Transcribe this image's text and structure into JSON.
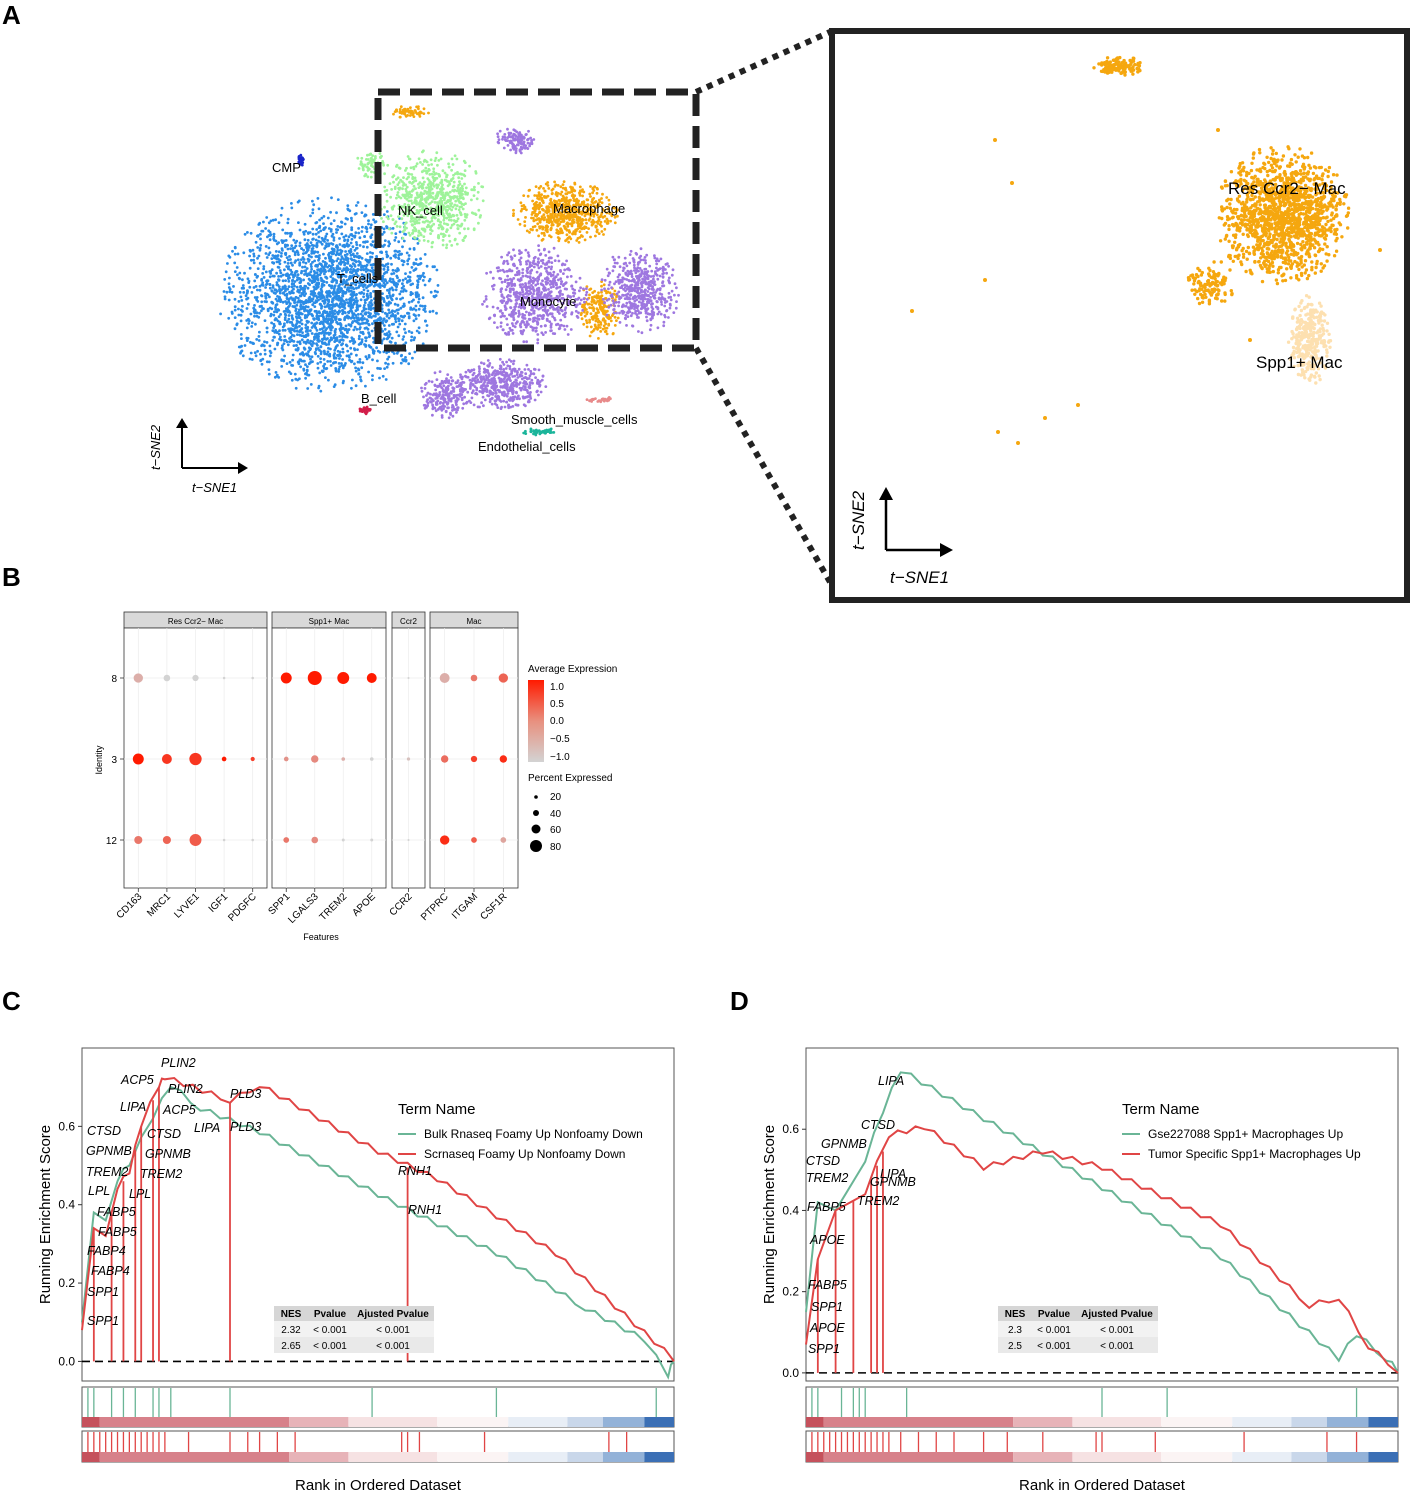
{
  "panel_letters": {
    "a": "A",
    "b": "B",
    "c": "C",
    "d": "D"
  },
  "chart_data": [
    {
      "panel": "A",
      "type": "scatter",
      "title": "",
      "xlabel": "t−SNE1",
      "ylabel": "t−SNE2",
      "grid": false,
      "clusters": [
        {
          "name": "T_cells",
          "color": "#2b8ce6"
        },
        {
          "name": "NK_cell",
          "color": "#9ef39a"
        },
        {
          "name": "Macrophage",
          "color": "#f5a70f"
        },
        {
          "name": "Monocyte",
          "color": "#9e77e0"
        },
        {
          "name": "CMP",
          "color": "#1a24c9"
        },
        {
          "name": "B_cell",
          "color": "#d21e4a"
        },
        {
          "name": "Smooth_muscle_cells",
          "color": "#e88a8a"
        },
        {
          "name": "Endothelial_cells",
          "color": "#1bb59b"
        }
      ],
      "zoom": {
        "xlabel": "t−SNE1",
        "ylabel": "t−SNE2",
        "clusters": [
          {
            "name": "Res Ccr2− Mac",
            "color": "#f5a70f"
          },
          {
            "name": "Spp1+ Mac",
            "color": "#fde0b0"
          }
        ]
      }
    },
    {
      "panel": "B",
      "type": "scatter",
      "title": "",
      "xlabel": "Features",
      "ylabel": "Identity",
      "groups": [
        {
          "name": "Res Ccr2− Mac",
          "features": [
            "CD163",
            "MRC1",
            "LYVE1",
            "IGF1",
            "PDGFC"
          ]
        },
        {
          "name": "Spp1+ Mac",
          "features": [
            "SPP1",
            "LGALS3",
            "TREM2",
            "APOE"
          ]
        },
        {
          "name": "Ccr2",
          "features": [
            "CCR2"
          ]
        },
        {
          "name": "Mac",
          "features": [
            "PTPRC",
            "ITGAM",
            "CSF1R"
          ]
        }
      ],
      "identities": [
        "8",
        "3",
        "12"
      ],
      "avg_expression": {
        "8": [
          -0.6,
          -1.0,
          -1.0,
          -1.0,
          -1.0,
          1.0,
          1.0,
          1.0,
          1.0,
          -1.0,
          -0.6,
          0.0,
          0.2
        ],
        "3": [
          1.0,
          0.7,
          0.7,
          1.0,
          0.6,
          -0.3,
          -0.2,
          -0.6,
          -1.0,
          -0.8,
          0.1,
          0.6,
          0.8
        ],
        "12": [
          0.0,
          0.2,
          0.3,
          -1.0,
          -1.0,
          0.0,
          -0.2,
          -1.0,
          -1.0,
          -1.0,
          0.8,
          0.3,
          -0.5
        ]
      },
      "pct_expressed": {
        "8": [
          40,
          20,
          18,
          3,
          3,
          55,
          90,
          65,
          45,
          2,
          45,
          20,
          40
        ],
        "3": [
          55,
          45,
          70,
          10,
          8,
          10,
          25,
          6,
          6,
          5,
          25,
          18,
          25
        ],
        "12": [
          30,
          30,
          65,
          3,
          3,
          15,
          20,
          4,
          4,
          2,
          40,
          15,
          15
        ]
      },
      "legend": {
        "color_title": "Average Expression",
        "color_ticks": [
          "1.0",
          "0.5",
          "0.0",
          "−0.5",
          "−1.0"
        ],
        "size_title": "Percent Expressed",
        "size_ticks": [
          "20",
          "40",
          "60",
          "80"
        ]
      }
    },
    {
      "panel": "C",
      "type": "line",
      "xlabel": "Rank in Ordered Dataset",
      "ylabel": "Running Enrichment Score",
      "ylim": [
        -0.05,
        0.8
      ],
      "yticks": [
        "0.0",
        "0.2",
        "0.4",
        "0.6"
      ],
      "legend_title": "Term Name",
      "series": [
        {
          "name": "Bulk Rnaseq Foamy Up Nonfoamy Down",
          "color": "#6ab596",
          "x": [
            0,
            0.02,
            0.04,
            0.06,
            0.08,
            0.12,
            0.15,
            0.2,
            0.3,
            0.5,
            0.7,
            0.85,
            0.95,
            0.99,
            1.0
          ],
          "y": [
            0.1,
            0.38,
            0.36,
            0.46,
            0.5,
            0.62,
            0.7,
            0.64,
            0.58,
            0.42,
            0.27,
            0.13,
            0.05,
            -0.04,
            0.0
          ]
        },
        {
          "name": "Scrnaseq Foamy Up Nonfoamy Down",
          "color": "#e04545",
          "x": [
            0,
            0.02,
            0.04,
            0.06,
            0.08,
            0.1,
            0.13,
            0.14,
            0.25,
            0.3,
            0.5,
            0.6,
            0.8,
            1.0
          ],
          "y": [
            0.08,
            0.34,
            0.32,
            0.44,
            0.48,
            0.6,
            0.7,
            0.72,
            0.66,
            0.7,
            0.53,
            0.46,
            0.27,
            0.0
          ]
        }
      ],
      "gene_labels": [
        "PLIN2",
        "ACP5",
        "PLIN2",
        "LIPA",
        "ACP5",
        "CTSD",
        "CTSD",
        "LIPA",
        "PLD3",
        "PLD3",
        "GPNMB",
        "GPNMB",
        "TREM2",
        "TREM2",
        "LPL",
        "LPL",
        "FABP5",
        "FABP5",
        "FABP4",
        "FABP4",
        "SPP1",
        "SPP1",
        "RNH1",
        "RNH1"
      ],
      "stats_table": {
        "headers": [
          "NES",
          "Pvalue",
          "Ajusted Pvalue"
        ],
        "rows": [
          [
            "2.32",
            "< 0.001",
            "< 0.001"
          ],
          [
            "2.65",
            "< 0.001",
            "< 0.001"
          ]
        ]
      }
    },
    {
      "panel": "D",
      "type": "line",
      "xlabel": "Rank in Ordered Dataset",
      "ylabel": "Running Enrichment Score",
      "ylim": [
        -0.02,
        0.8
      ],
      "yticks": [
        "0.0",
        "0.2",
        "0.4",
        "0.6"
      ],
      "legend_title": "Term Name",
      "series": [
        {
          "name": "Gse227088 Spp1+ Macrophages Up",
          "color": "#6ab596",
          "x": [
            0,
            0.02,
            0.05,
            0.1,
            0.13,
            0.16,
            0.3,
            0.5,
            0.7,
            0.9,
            0.93,
            0.98,
            1.0
          ],
          "y": [
            0.15,
            0.42,
            0.4,
            0.52,
            0.64,
            0.74,
            0.62,
            0.45,
            0.28,
            0.03,
            0.09,
            0.03,
            0.0
          ]
        },
        {
          "name": "Tumor Specific Spp1+ Macrophages Up",
          "color": "#e04545",
          "x": [
            0,
            0.02,
            0.05,
            0.1,
            0.14,
            0.2,
            0.3,
            0.4,
            0.5,
            0.7,
            0.85,
            0.9,
            0.95,
            1.0
          ],
          "y": [
            0.07,
            0.28,
            0.4,
            0.44,
            0.58,
            0.6,
            0.5,
            0.54,
            0.5,
            0.36,
            0.16,
            0.18,
            0.06,
            0.0
          ]
        }
      ],
      "gene_labels": [
        "LIPA",
        "CTSD",
        "LIPA",
        "GPNMB",
        "CTSD",
        "GPNMB",
        "TREM2",
        "TREM2",
        "FABP5",
        "APOE",
        "FABP5",
        "SPP1",
        "APOE",
        "SPP1"
      ],
      "stats_table": {
        "headers": [
          "NES",
          "Pvalue",
          "Ajusted Pvalue"
        ],
        "rows": [
          [
            "2.3",
            "< 0.001",
            "< 0.001"
          ],
          [
            "2.5",
            "< 0.001",
            "< 0.001"
          ]
        ]
      }
    }
  ]
}
